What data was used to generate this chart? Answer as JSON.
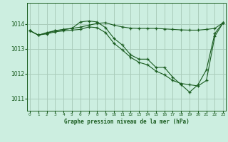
{
  "title": "Graphe pression niveau de la mer (hPa)",
  "background_color": "#cceee0",
  "grid_color": "#aaccbb",
  "line_color": "#1a5c20",
  "x_ticks": [
    0,
    1,
    2,
    3,
    4,
    5,
    6,
    7,
    8,
    9,
    10,
    11,
    12,
    13,
    14,
    15,
    16,
    17,
    18,
    19,
    20,
    21,
    22,
    23
  ],
  "y_ticks": [
    1011,
    1012,
    1013,
    1014
  ],
  "ylim": [
    1010.5,
    1014.85
  ],
  "xlim": [
    -0.3,
    23.3
  ],
  "line1_x": [
    0,
    1,
    2,
    3,
    4,
    5,
    6,
    7,
    8,
    9,
    10,
    11,
    12,
    13,
    14,
    15,
    16,
    17,
    18,
    19,
    20,
    21,
    22,
    23
  ],
  "line1_y": [
    1013.73,
    1013.55,
    1013.65,
    1013.73,
    1013.78,
    1013.82,
    1013.87,
    1013.95,
    1014.02,
    1014.05,
    1013.95,
    1013.88,
    1013.83,
    1013.82,
    1013.82,
    1013.82,
    1013.8,
    1013.78,
    1013.76,
    1013.75,
    1013.75,
    1013.78,
    1013.82,
    1014.05
  ],
  "line2_x": [
    0,
    1,
    2,
    3,
    4,
    5,
    6,
    7,
    8,
    9,
    10,
    11,
    12,
    13,
    14,
    15,
    16,
    17,
    18,
    19,
    20,
    21,
    22,
    23
  ],
  "line2_y": [
    1013.73,
    1013.55,
    1013.63,
    1013.72,
    1013.77,
    1013.82,
    1014.08,
    1014.12,
    1014.08,
    1013.85,
    1013.42,
    1013.15,
    1012.75,
    1012.58,
    1012.58,
    1012.25,
    1012.25,
    1011.85,
    1011.55,
    1011.25,
    1011.55,
    1012.15,
    1013.62,
    1014.05
  ],
  "line3_x": [
    0,
    1,
    2,
    3,
    4,
    5,
    6,
    7,
    8,
    9,
    10,
    11,
    12,
    13,
    14,
    15,
    16,
    17,
    18,
    19,
    20,
    21,
    22,
    23
  ],
  "line3_y": [
    1013.73,
    1013.55,
    1013.6,
    1013.68,
    1013.72,
    1013.75,
    1013.78,
    1013.88,
    1013.85,
    1013.65,
    1013.22,
    1012.95,
    1012.65,
    1012.45,
    1012.35,
    1012.1,
    1011.95,
    1011.72,
    1011.6,
    1011.55,
    1011.5,
    1011.72,
    1013.5,
    1014.05
  ]
}
